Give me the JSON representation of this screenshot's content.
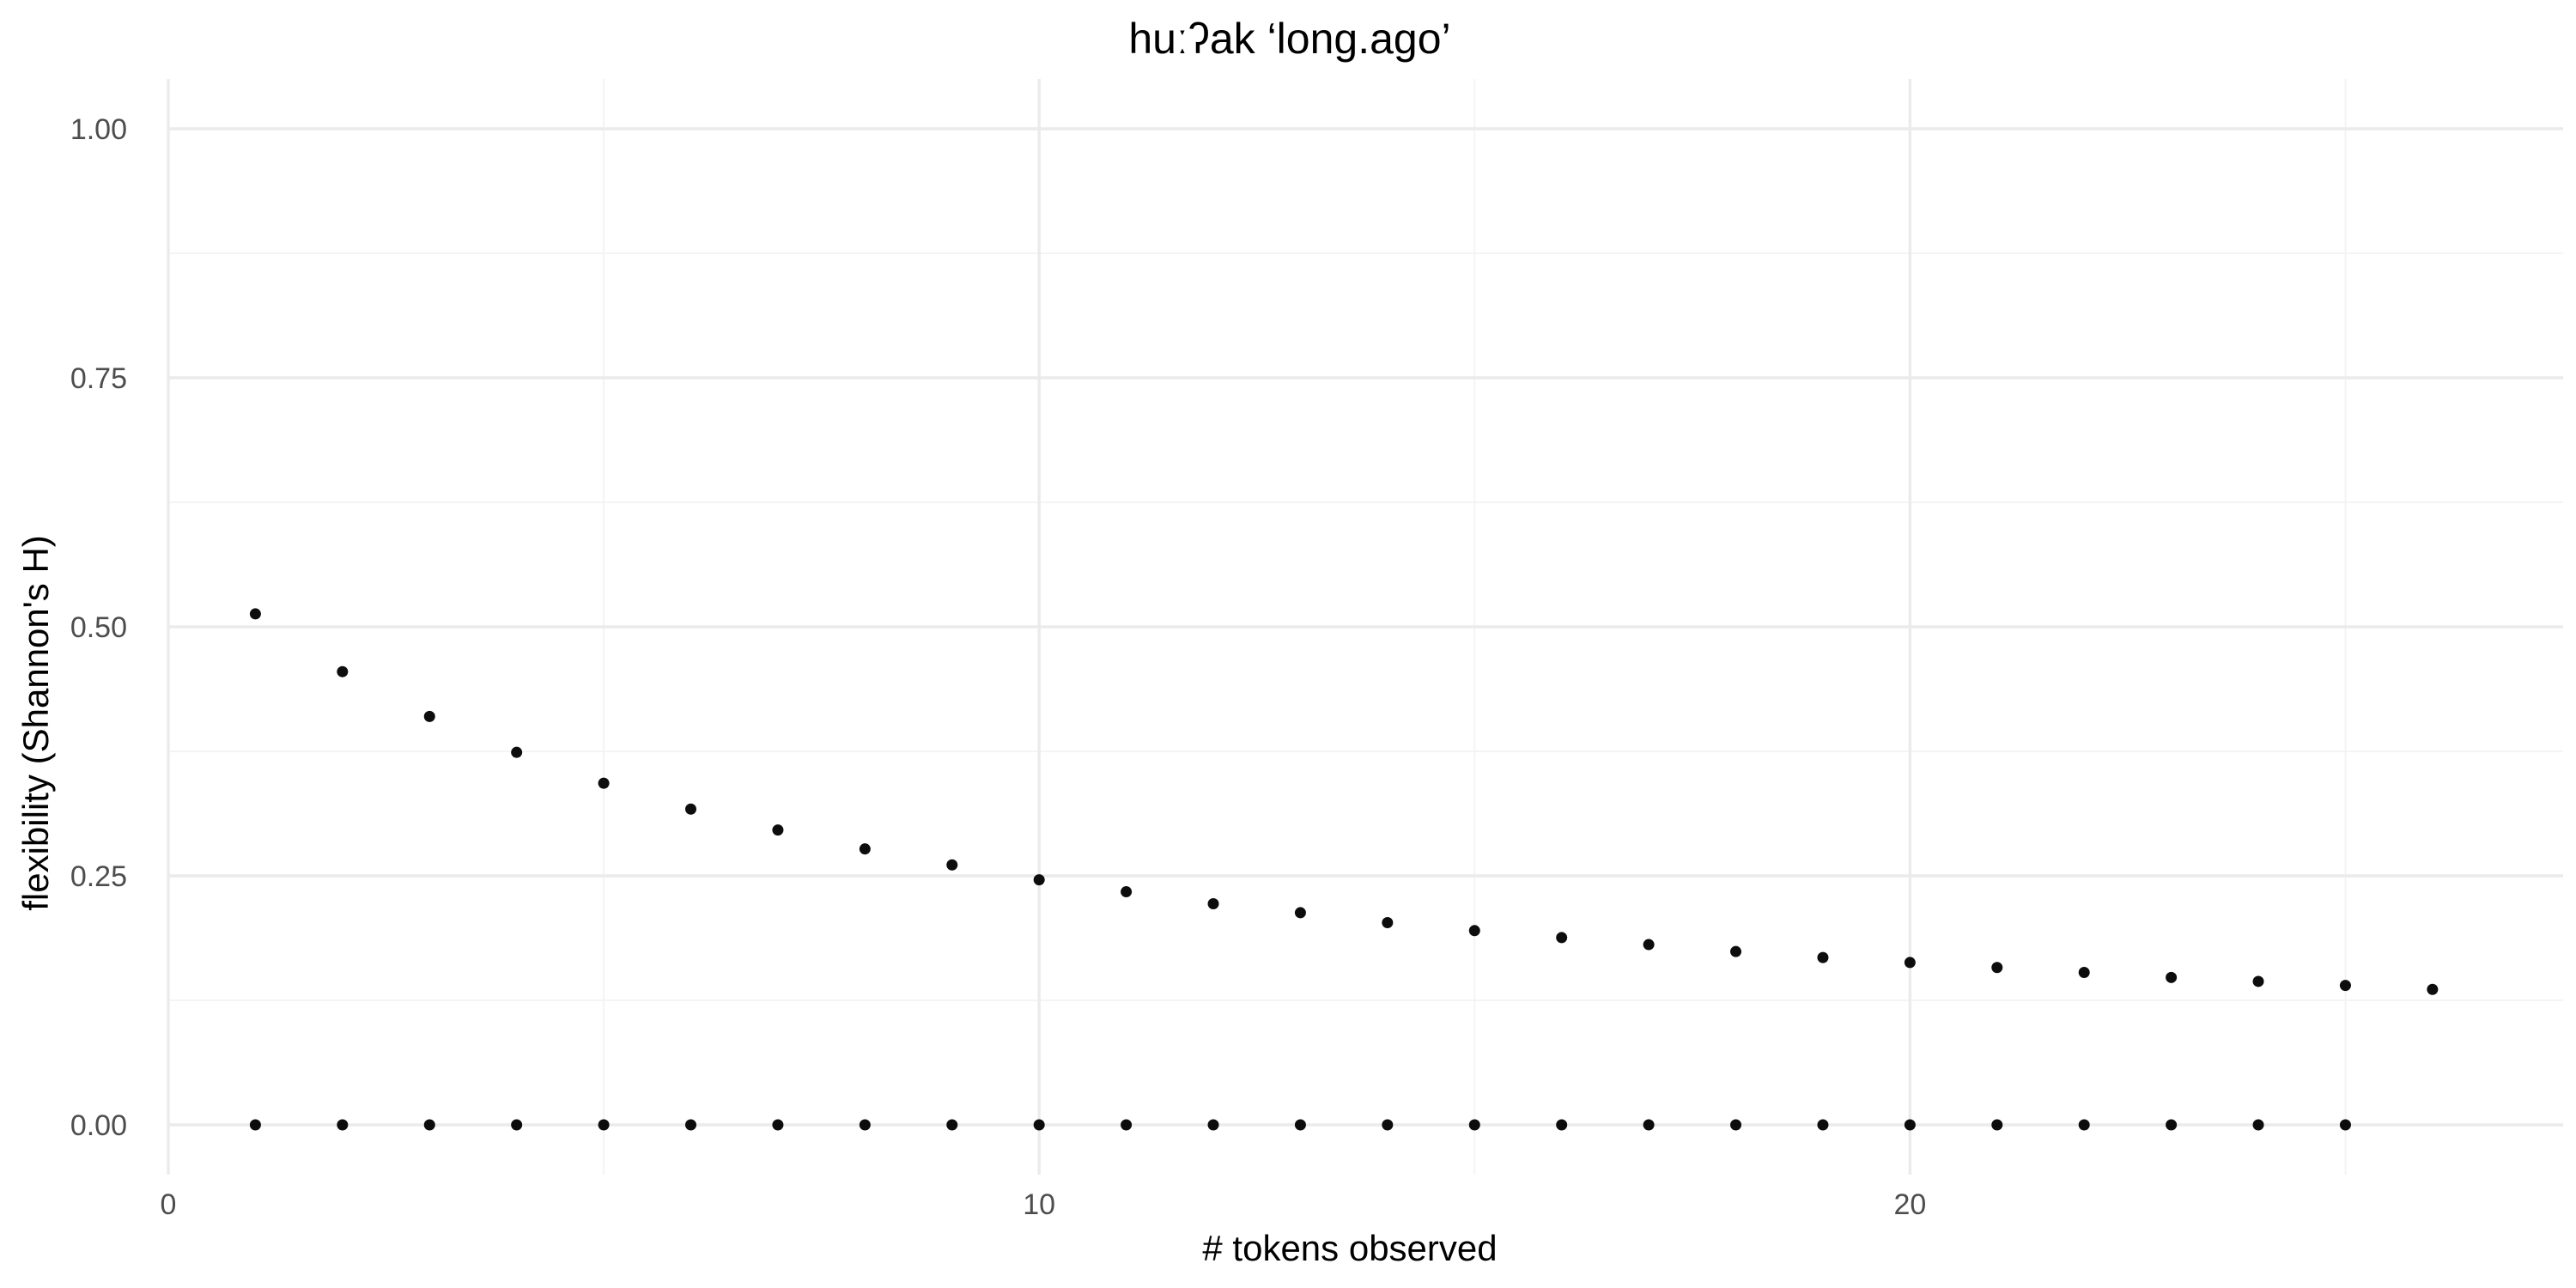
{
  "chart_data": {
    "type": "scatter",
    "title": "huːʔak ‘long.ago’",
    "xlabel": "# tokens observed",
    "ylabel": "flexibility (Shannon's H)",
    "xlim": [
      0,
      27.5
    ],
    "ylim": [
      -0.05,
      1.05
    ],
    "x_ticks": [
      0,
      10,
      20
    ],
    "y_ticks": [
      0.0,
      0.25,
      0.5,
      0.75,
      1.0
    ],
    "x_tick_labels": [
      "0",
      "10",
      "20"
    ],
    "y_tick_labels": [
      "0.00",
      "0.25",
      "0.50",
      "0.75",
      "1.00"
    ],
    "grid": true,
    "legend": "none",
    "point_color": "#000000",
    "series": [
      {
        "x": [
          1,
          2,
          3,
          4,
          5,
          6,
          7,
          8,
          9,
          10,
          11,
          12,
          13,
          14,
          15,
          16,
          17,
          18,
          19,
          20,
          21,
          22,
          23,
          24,
          25,
          26
        ],
        "y": [
          0.513,
          0.455,
          0.41,
          0.374,
          0.343,
          0.317,
          0.296,
          0.277,
          0.261,
          0.246,
          0.234,
          0.222,
          0.213,
          0.203,
          0.195,
          0.188,
          0.181,
          0.174,
          0.168,
          0.163,
          0.158,
          0.153,
          0.148,
          0.144,
          0.14,
          0.136
        ]
      },
      {
        "x": [
          1,
          2,
          3,
          4,
          5,
          6,
          7,
          8,
          9,
          10,
          11,
          12,
          13,
          14,
          15,
          16,
          17,
          18,
          19,
          20,
          21,
          22,
          23,
          24,
          25
        ],
        "y": [
          0,
          0,
          0,
          0,
          0,
          0,
          0,
          0,
          0,
          0,
          0,
          0,
          0,
          0,
          0,
          0,
          0,
          0,
          0,
          0,
          0,
          0,
          0,
          0,
          0
        ]
      }
    ]
  }
}
